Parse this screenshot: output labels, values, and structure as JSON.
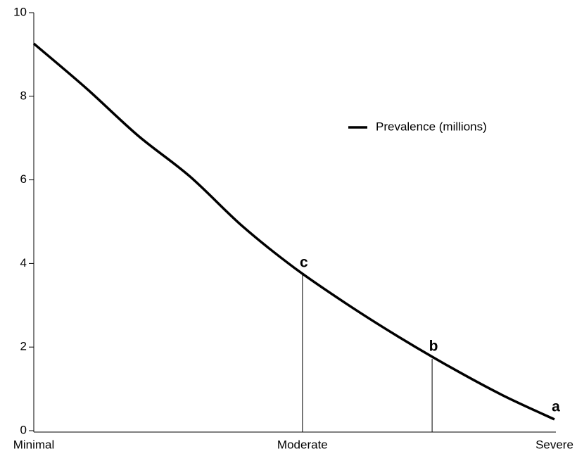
{
  "chart_data": {
    "type": "line",
    "x": [
      0,
      10,
      20,
      30,
      40,
      50,
      60,
      70,
      80,
      90,
      100
    ],
    "series": [
      {
        "name": "Prevalence (millions)",
        "color": "#000000",
        "values": [
          9.26,
          8.2,
          7.06,
          6.08,
          4.9,
          3.9,
          3.04,
          2.25,
          1.52,
          0.85,
          0.27
        ]
      }
    ],
    "xlim": [
      0,
      100
    ],
    "xticks": [
      {
        "value": 0,
        "label": "Minimal"
      },
      {
        "value": 51.6,
        "label": "Moderate"
      },
      {
        "value": 100,
        "label": "Severe"
      }
    ],
    "ylim": [
      0,
      10
    ],
    "yticks": [
      0,
      2,
      4,
      6,
      8,
      10
    ],
    "annotations": [
      {
        "label": "c",
        "x": 51.6,
        "y": 3.72,
        "drop_line": true
      },
      {
        "label": "b",
        "x": 76.5,
        "y": 1.72,
        "drop_line": true
      },
      {
        "label": "a",
        "x": 100,
        "y": 0.27,
        "drop_line": false
      }
    ],
    "legend": "upper right"
  }
}
